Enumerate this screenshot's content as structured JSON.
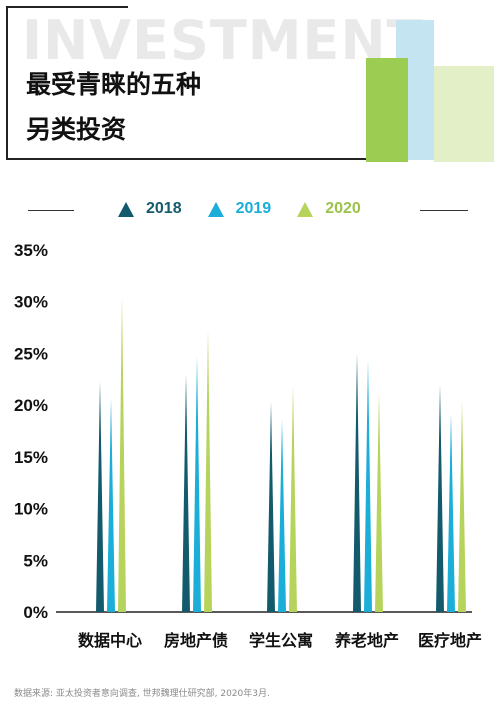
{
  "header": {
    "watermark": "INVESTMENT",
    "title_line1": "最受青睐的五种",
    "title_line2": "另类投资"
  },
  "colors": {
    "2018": "#135a6c",
    "2019": "#1aaed8",
    "2020": "#b6d35c",
    "deco_light_blue": "#c5e4f2",
    "deco_green": "#9ccc52",
    "deco_light_green": "#e2efc7"
  },
  "chart_data": {
    "type": "bar",
    "bar_shape": "spike",
    "categories": [
      "数据中心",
      "房地产债",
      "学生公寓",
      "养老地产",
      "医疗地产"
    ],
    "series": [
      {
        "name": "2018",
        "values": [
          22.3,
          23.0,
          20.3,
          25.0,
          22.0
        ]
      },
      {
        "name": "2019",
        "values": [
          20.7,
          24.7,
          18.6,
          24.3,
          19.2
        ]
      },
      {
        "name": "2020",
        "values": [
          30.5,
          27.3,
          21.9,
          21.3,
          20.4
        ]
      }
    ],
    "ylim": [
      0,
      35
    ],
    "yticks": [
      "0%",
      "5%",
      "10%",
      "15%",
      "20%",
      "25%",
      "30%",
      "35%"
    ],
    "legend_position": "top-center",
    "grid": false
  },
  "footer": {
    "source": "数据来源: 亚太投资者意向调查, 世邦魏理仕研究部, 2020年3月."
  }
}
